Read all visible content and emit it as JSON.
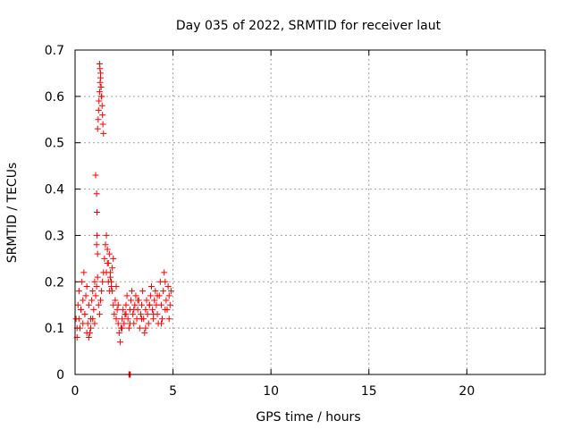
{
  "chart_data": {
    "type": "scatter",
    "title": "Day 035 of 2022, SRMTID for receiver laut",
    "xlabel": "GPS time / hours",
    "ylabel": "SRMTID / TECUs",
    "xlim": [
      0,
      24
    ],
    "ylim": [
      0,
      0.7
    ],
    "xticks": [
      0,
      5,
      10,
      15,
      20
    ],
    "yticks": [
      0,
      0.1,
      0.2,
      0.3,
      0.4,
      0.5,
      0.6,
      0.7
    ],
    "xtick_labels": [
      "0",
      "5",
      "10",
      "15",
      "20"
    ],
    "ytick_labels": [
      "0",
      "0.1",
      "0.2",
      "0.3",
      "0.4",
      "0.5",
      "0.6",
      "0.7"
    ],
    "grid": true,
    "marker": "+",
    "marker_color": "#ff0000",
    "series": [
      {
        "name": "SRMTID",
        "x": [
          0.05,
          0.1,
          0.15,
          0.2,
          0.25,
          0.3,
          0.35,
          0.4,
          0.45,
          0.5,
          0.55,
          0.6,
          0.65,
          0.7,
          0.75,
          0.8,
          0.85,
          0.9,
          0.95,
          1.0,
          1.05,
          1.1,
          1.15,
          1.2,
          1.25,
          1.3,
          1.35,
          1.4,
          1.45,
          1.5,
          1.55,
          1.6,
          1.65,
          1.7,
          1.75,
          1.8,
          1.85,
          1.9,
          1.95,
          2.0,
          2.05,
          2.1,
          2.15,
          2.2,
          2.25,
          2.3,
          2.35,
          2.4,
          2.45,
          2.5,
          2.55,
          2.6,
          2.65,
          2.7,
          2.75,
          2.8,
          2.85,
          2.9,
          2.95,
          3.0,
          3.05,
          3.1,
          3.15,
          3.2,
          3.25,
          3.3,
          3.35,
          3.4,
          3.45,
          3.5,
          3.55,
          3.6,
          3.65,
          3.7,
          3.75,
          3.8,
          3.85,
          3.9,
          3.95,
          4.0,
          4.05,
          4.1,
          4.15,
          4.2,
          4.25,
          4.3,
          4.35,
          4.4,
          4.45,
          4.5,
          4.55,
          4.6,
          4.65,
          4.7,
          4.75,
          4.8,
          4.85,
          4.9,
          1.05,
          1.1,
          1.12,
          1.15,
          1.18,
          1.2,
          1.22,
          1.25,
          1.28,
          1.3,
          1.32,
          1.35,
          1.38,
          1.4,
          1.42,
          1.45,
          1.25,
          1.27,
          1.3,
          1.33,
          1.36,
          1.1,
          1.12,
          1.15,
          1.6,
          1.65,
          1.7,
          1.75,
          1.8,
          1.85,
          1.9,
          1.95,
          0.1,
          0.2,
          0.3,
          0.4,
          0.5,
          0.6,
          0.7,
          0.8,
          0.9,
          1.0,
          2.1,
          2.2,
          2.4,
          2.6,
          2.8,
          3.0,
          3.2,
          3.4,
          3.6,
          3.8,
          4.0,
          4.2,
          4.4,
          4.6,
          4.8,
          2.75,
          2.78,
          2.8,
          2.82
        ],
        "y": [
          0.12,
          0.08,
          0.15,
          0.18,
          0.1,
          0.14,
          0.2,
          0.16,
          0.22,
          0.13,
          0.17,
          0.19,
          0.11,
          0.15,
          0.09,
          0.12,
          0.16,
          0.18,
          0.14,
          0.2,
          0.17,
          0.19,
          0.21,
          0.15,
          0.13,
          0.16,
          0.18,
          0.2,
          0.22,
          0.25,
          0.28,
          0.3,
          0.27,
          0.24,
          0.26,
          0.22,
          0.2,
          0.18,
          0.15,
          0.13,
          0.16,
          0.19,
          0.14,
          0.11,
          0.09,
          0.07,
          0.1,
          0.12,
          0.14,
          0.11,
          0.13,
          0.15,
          0.17,
          0.12,
          0.1,
          0.14,
          0.16,
          0.18,
          0.13,
          0.11,
          0.15,
          0.17,
          0.12,
          0.14,
          0.16,
          0.1,
          0.13,
          0.15,
          0.18,
          0.12,
          0.09,
          0.14,
          0.16,
          0.13,
          0.11,
          0.15,
          0.17,
          0.19,
          0.14,
          0.12,
          0.16,
          0.18,
          0.15,
          0.13,
          0.11,
          0.17,
          0.2,
          0.15,
          0.12,
          0.18,
          0.22,
          0.2,
          0.16,
          0.14,
          0.19,
          0.17,
          0.15,
          0.18,
          0.43,
          0.39,
          0.35,
          0.53,
          0.55,
          0.57,
          0.59,
          0.61,
          0.63,
          0.65,
          0.62,
          0.6,
          0.58,
          0.56,
          0.54,
          0.52,
          0.67,
          0.66,
          0.64,
          0.62,
          0.6,
          0.28,
          0.3,
          0.26,
          0.22,
          0.24,
          0.2,
          0.18,
          0.21,
          0.19,
          0.23,
          0.25,
          0.1,
          0.12,
          0.14,
          0.11,
          0.13,
          0.09,
          0.08,
          0.1,
          0.12,
          0.11,
          0.12,
          0.15,
          0.1,
          0.13,
          0.11,
          0.14,
          0.16,
          0.12,
          0.1,
          0.15,
          0.13,
          0.17,
          0.11,
          0.14,
          0.12,
          0.0,
          0.0,
          0.0,
          0.0
        ]
      }
    ]
  }
}
